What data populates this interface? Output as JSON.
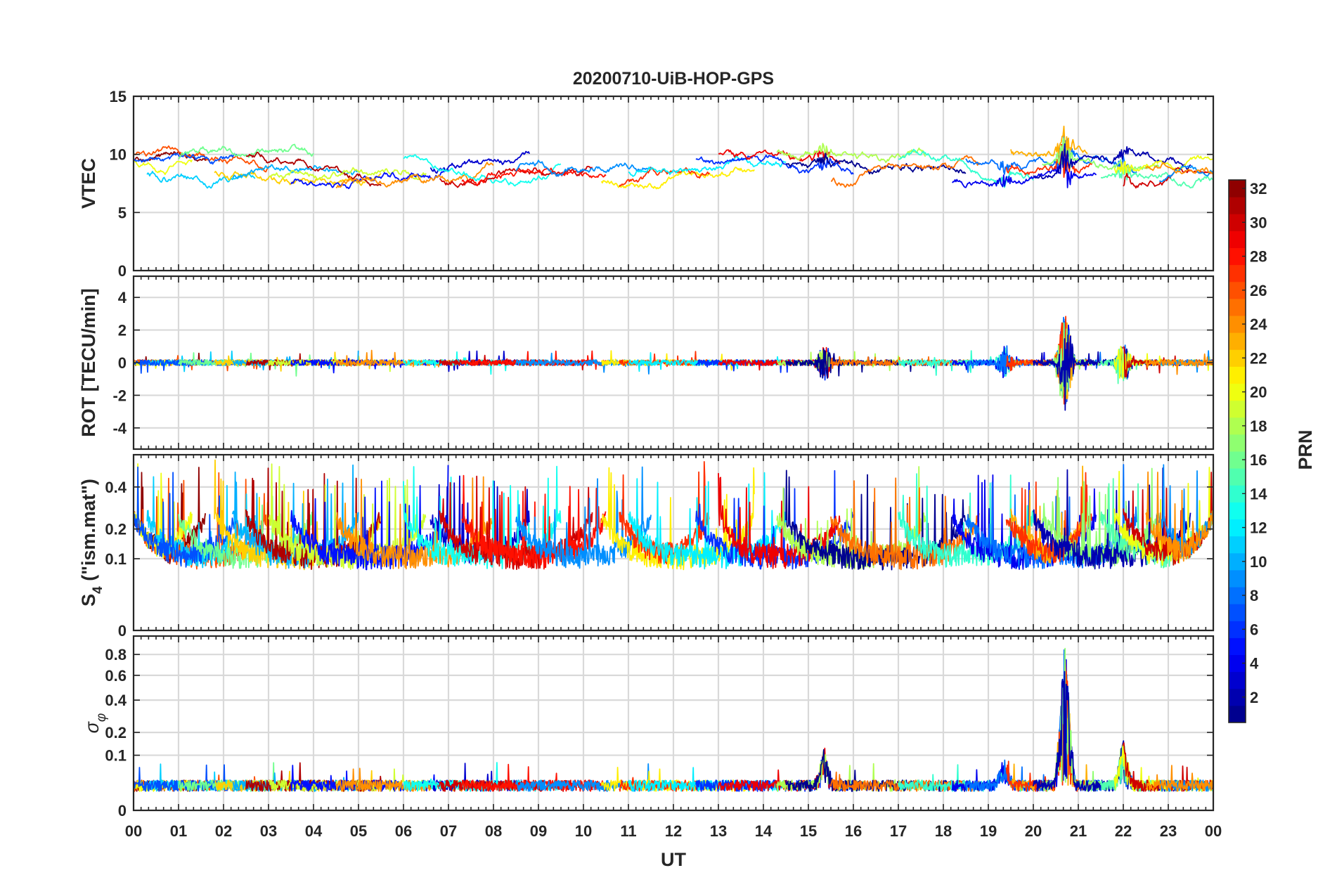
{
  "chart_data": {
    "type": "line",
    "title": "20200710-UiB-HOP-GPS",
    "xlabel": "UT",
    "x_ticks": [
      "00",
      "01",
      "02",
      "03",
      "04",
      "05",
      "06",
      "07",
      "08",
      "09",
      "10",
      "11",
      "12",
      "13",
      "14",
      "15",
      "16",
      "17",
      "18",
      "19",
      "20",
      "21",
      "22",
      "23",
      "00"
    ],
    "xlim": [
      0,
      24
    ],
    "grid": true,
    "colorbar": {
      "label": "PRN",
      "range": [
        1,
        32
      ],
      "ticks": [
        "2",
        "4",
        "6",
        "8",
        "10",
        "12",
        "14",
        "16",
        "18",
        "20",
        "22",
        "24",
        "26",
        "28",
        "30",
        "32"
      ],
      "colormap": "jet",
      "placement": "right"
    },
    "panels": [
      {
        "id": "vtec",
        "ylabel": "VTEC",
        "ylim": [
          0,
          15
        ],
        "y_ticks": [
          {
            "v": 0,
            "t": "0"
          },
          {
            "v": 5,
            "t": "5"
          },
          {
            "v": 10,
            "t": "10"
          },
          {
            "v": 15,
            "t": "15"
          }
        ],
        "series_model": "vtec",
        "typical_range": [
          4,
          13
        ]
      },
      {
        "id": "rot",
        "ylabel": "ROT [TECU/min]",
        "ylim": [
          -5.3,
          5.3
        ],
        "y_ticks": [
          {
            "v": -4,
            "t": "-4"
          },
          {
            "v": -2,
            "t": "-2"
          },
          {
            "v": 0,
            "t": "0"
          },
          {
            "v": 2,
            "t": "2"
          },
          {
            "v": 4,
            "t": "4"
          }
        ],
        "series_model": "rot",
        "typical_range": [
          -3.5,
          3.5
        ]
      },
      {
        "id": "s4",
        "ylabel_main": "S",
        "ylabel_sub": "4",
        "ylabel_tail": " (\"ism.mat\")",
        "ylim": [
          0,
          0.6
        ],
        "y_scale": "sqrt",
        "y_ticks": [
          {
            "v": 0,
            "t": "0"
          },
          {
            "v": 0.1,
            "t": "0.1"
          },
          {
            "v": 0.2,
            "t": "0.2"
          },
          {
            "v": 0.4,
            "t": "0.4"
          }
        ],
        "series_model": "s4",
        "typical_range": [
          0.05,
          0.6
        ]
      },
      {
        "id": "sigma",
        "ylabel_main": "σ",
        "ylabel_sub": "φ",
        "ylim": [
          0,
          1
        ],
        "y_scale": "sqrt",
        "y_ticks": [
          {
            "v": 0,
            "t": "0"
          },
          {
            "v": 0.1,
            "t": "0.1"
          },
          {
            "v": 0.2,
            "t": "0.2"
          },
          {
            "v": 0.4,
            "t": "0.4"
          },
          {
            "v": 0.6,
            "t": "0.6"
          },
          {
            "v": 0.8,
            "t": "0.8"
          }
        ],
        "series_model": "sigma",
        "typical_range": [
          0.01,
          1.0
        ]
      }
    ],
    "satellite_passes": [
      {
        "prn": 32,
        "start": 0.0,
        "end": 1.6
      },
      {
        "prn": 26,
        "start": 0.0,
        "end": 3.0
      },
      {
        "prn": 20,
        "start": 0.0,
        "end": 1.3
      },
      {
        "prn": 11,
        "start": 0.3,
        "end": 2.7
      },
      {
        "prn": 7,
        "start": 0.0,
        "end": 2.3
      },
      {
        "prn": 16,
        "start": 1.0,
        "end": 4.0
      },
      {
        "prn": 22,
        "start": 1.8,
        "end": 5.5
      },
      {
        "prn": 10,
        "start": 2.2,
        "end": 5.0
      },
      {
        "prn": 31,
        "start": 2.5,
        "end": 5.5
      },
      {
        "prn": 19,
        "start": 3.0,
        "end": 6.5
      },
      {
        "prn": 5,
        "start": 3.5,
        "end": 7.0
      },
      {
        "prn": 24,
        "start": 4.5,
        "end": 8.0
      },
      {
        "prn": 3,
        "start": 6.6,
        "end": 8.8
      },
      {
        "prn": 13,
        "start": 6.0,
        "end": 9.5
      },
      {
        "prn": 30,
        "start": 6.8,
        "end": 10.2
      },
      {
        "prn": 28,
        "start": 7.3,
        "end": 10.5
      },
      {
        "prn": 9,
        "start": 8.5,
        "end": 11.5
      },
      {
        "prn": 21,
        "start": 10.4,
        "end": 13.8
      },
      {
        "prn": 27,
        "start": 10.8,
        "end": 12.8
      },
      {
        "prn": 12,
        "start": 11.0,
        "end": 14.5
      },
      {
        "prn": 6,
        "start": 12.5,
        "end": 16.0
      },
      {
        "prn": 29,
        "start": 13.0,
        "end": 15.7
      },
      {
        "prn": 18,
        "start": 14.3,
        "end": 17.6
      },
      {
        "prn": 1,
        "start": 14.5,
        "end": 18.5
      },
      {
        "prn": 25,
        "start": 15.5,
        "end": 18.8
      },
      {
        "prn": 14,
        "start": 17.0,
        "end": 20.0
      },
      {
        "prn": 4,
        "start": 18.2,
        "end": 21.4
      },
      {
        "prn": 8,
        "start": 18.5,
        "end": 22.3
      },
      {
        "prn": 23,
        "start": 19.5,
        "end": 21.2
      },
      {
        "prn": 27,
        "start": 19.4,
        "end": 21.3
      },
      {
        "prn": 17,
        "start": 20.2,
        "end": 22.8
      },
      {
        "prn": 2,
        "start": 20.0,
        "end": 23.5
      },
      {
        "prn": 15,
        "start": 21.5,
        "end": 24.0
      },
      {
        "prn": 20,
        "start": 21.8,
        "end": 24.0
      },
      {
        "prn": 30,
        "start": 22.0,
        "end": 24.0
      },
      {
        "prn": 9,
        "start": 22.8,
        "end": 24.0
      },
      {
        "prn": 24,
        "start": 22.5,
        "end": 24.0
      }
    ],
    "events": [
      {
        "t": 20.7,
        "amplitude": 1.0
      },
      {
        "t": 15.35,
        "amplitude": 0.35
      },
      {
        "t": 19.35,
        "amplitude": 0.3
      },
      {
        "t": 22.0,
        "amplitude": 0.4
      }
    ]
  }
}
